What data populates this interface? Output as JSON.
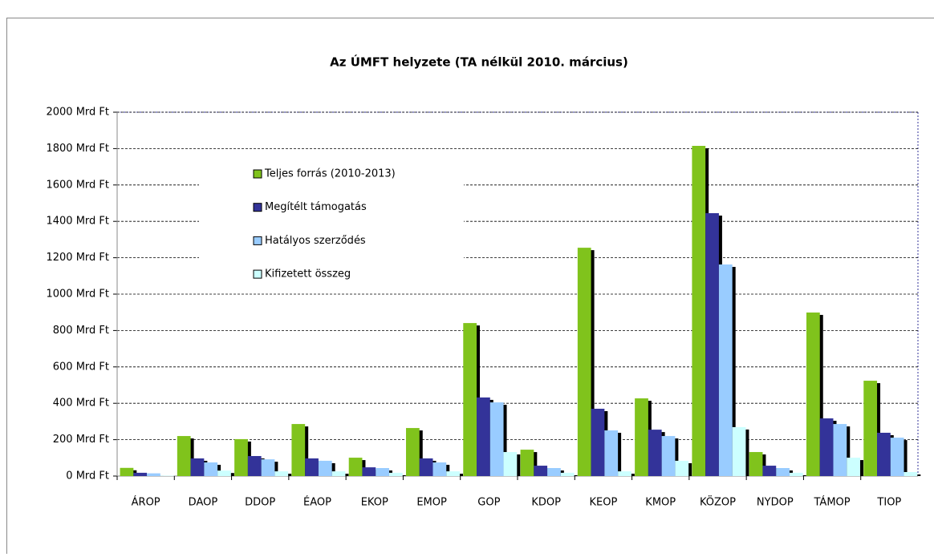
{
  "chart_data": {
    "type": "bar",
    "title": "Az ÚMFT helyzete (TA nélkül 2010. március)",
    "categories": [
      "ÁROP",
      "DAOP",
      "DDOP",
      "ÉAOP",
      "EKOP",
      "EMOP",
      "GOP",
      "KDOP",
      "KEOP",
      "KMOP",
      "KÖZOP",
      "NYDOP",
      "TÁMOP",
      "TIOP"
    ],
    "series": [
      {
        "name": "Teljes forrás (2010-2013)",
        "color": "#80c31c",
        "values": [
          45,
          220,
          203,
          286,
          101,
          264,
          841,
          145,
          1255,
          427,
          1815,
          132,
          899,
          524
        ]
      },
      {
        "name": "Megítélt támogatás",
        "color": "#333399",
        "values": [
          18,
          97,
          110,
          97,
          48,
          97,
          432,
          57,
          370,
          255,
          1445,
          57,
          317,
          238
        ]
      },
      {
        "name": "Hatályos szerződés",
        "color": "#99ccff",
        "values": [
          15,
          75,
          92,
          84,
          44,
          75,
          405,
          44,
          251,
          220,
          1163,
          44,
          286,
          211
        ]
      },
      {
        "name": "Kifizetett összeg",
        "color": "#ccffff",
        "values": [
          2,
          30,
          26,
          26,
          18,
          26,
          132,
          18,
          26,
          84,
          269,
          18,
          101,
          22
        ]
      }
    ],
    "ylim": [
      0,
      2000
    ],
    "yticks": [
      {
        "value": 0,
        "label": "0 Mrd Ft"
      },
      {
        "value": 200,
        "label": "200 Mrd Ft"
      },
      {
        "value": 400,
        "label": "400 Mrd Ft"
      },
      {
        "value": 600,
        "label": "600 Mrd Ft"
      },
      {
        "value": 800,
        "label": "800 Mrd Ft"
      },
      {
        "value": 1000,
        "label": "1000 Mrd Ft"
      },
      {
        "value": 1200,
        "label": "1200 Mrd Ft"
      },
      {
        "value": 1400,
        "label": "1400 Mrd Ft"
      },
      {
        "value": 1600,
        "label": "1600 Mrd Ft"
      },
      {
        "value": 1800,
        "label": "1800 Mrd Ft"
      },
      {
        "value": 2000,
        "label": "2000 Mrd Ft"
      }
    ],
    "grid": true
  }
}
